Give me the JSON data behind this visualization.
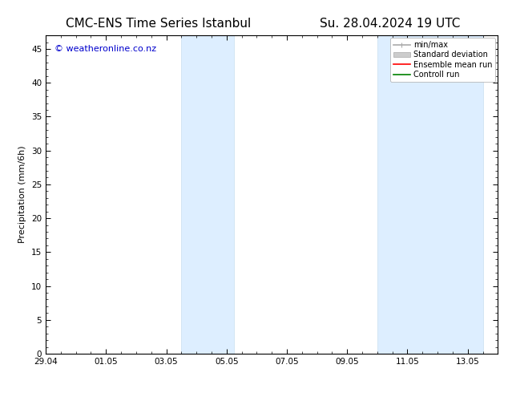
{
  "title_left": "CMC-ENS Time Series Istanbul",
  "title_right": "Su. 28.04.2024 19 UTC",
  "ylabel": "Precipitation (mm/6h)",
  "ylim": [
    0,
    47
  ],
  "yticks": [
    0,
    5,
    10,
    15,
    20,
    25,
    30,
    35,
    40,
    45
  ],
  "xlabel_dates": [
    "29.04",
    "01.05",
    "03.05",
    "05.05",
    "07.05",
    "09.05",
    "11.05",
    "13.05"
  ],
  "xtick_positions": [
    0,
    2,
    4,
    6,
    8,
    10,
    12,
    14
  ],
  "xlim": [
    0,
    15
  ],
  "shaded_regions": [
    {
      "x_start": 4.5,
      "x_end": 6.25
    },
    {
      "x_start": 11.0,
      "x_end": 14.5
    }
  ],
  "shaded_color": "#ddeeff",
  "shaded_edge_color": "#c8dff0",
  "background_color": "#ffffff",
  "watermark_text": "© weatheronline.co.nz",
  "watermark_color": "#0000cc",
  "watermark_fontsize": 8,
  "legend_items": [
    {
      "label": "min/max",
      "color": "#aaaaaa",
      "lw": 1.2
    },
    {
      "label": "Standard deviation",
      "color": "#cccccc",
      "lw": 5
    },
    {
      "label": "Ensemble mean run",
      "color": "#ff0000",
      "lw": 1.2
    },
    {
      "label": "Controll run",
      "color": "#008000",
      "lw": 1.2
    }
  ],
  "title_fontsize": 11,
  "axis_label_fontsize": 8,
  "tick_fontsize": 7.5,
  "legend_fontsize": 7,
  "font_family": "DejaVu Sans"
}
